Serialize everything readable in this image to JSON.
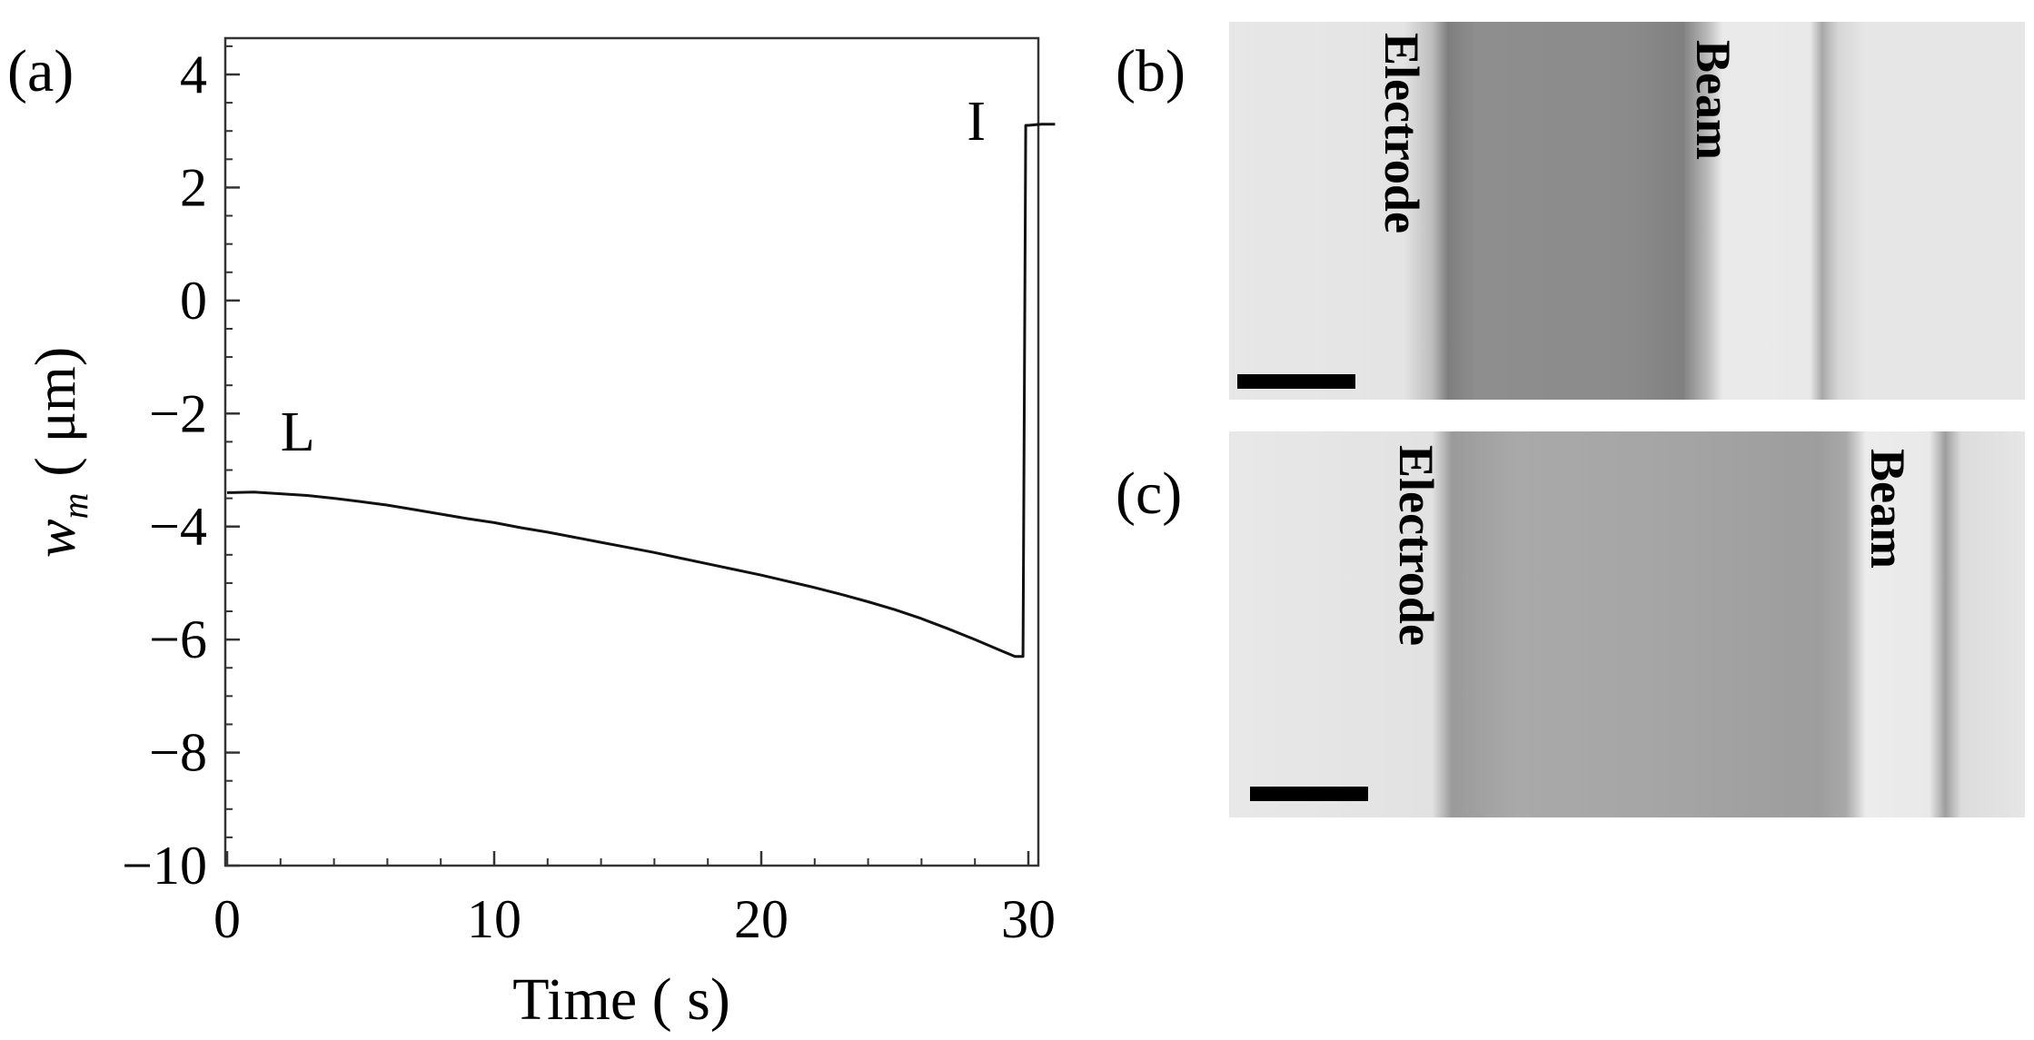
{
  "panels": {
    "a": {
      "label": "(a)",
      "chart_data": {
        "type": "line",
        "title": "",
        "xlabel": "Time ( s)",
        "ylabel_symbol": "w",
        "ylabel_subscript": "m",
        "ylabel_unit": "( μm)",
        "xlim": [
          0,
          31.2
        ],
        "ylim": [
          -10,
          4.5
        ],
        "x_ticks": [
          0,
          10,
          20,
          30
        ],
        "x_tick_labels": [
          "0",
          "10",
          "20",
          "30"
        ],
        "y_ticks": [
          4,
          2,
          0,
          -2,
          -4,
          -6,
          -8,
          -10
        ],
        "y_tick_labels": [
          "4",
          "2",
          "0",
          "−2",
          "−4",
          "−6",
          "−8",
          "−10"
        ],
        "grid": false,
        "annotations": [
          {
            "text": "L",
            "x": 2,
            "y": -2.3
          },
          {
            "text": "I",
            "x": 27.7,
            "y": 3.2
          }
        ],
        "series": [
          {
            "x": [
              0,
              1,
              2,
              3,
              4,
              5,
              6,
              7,
              8,
              9,
              10,
              11,
              12,
              13,
              14,
              15,
              16,
              17,
              18,
              19,
              20,
              21,
              22,
              23,
              24,
              25,
              26,
              27,
              28,
              29,
              29.5,
              29.8,
              29.9,
              30.0,
              30.5,
              31.0
            ],
            "y": [
              -3.4,
              -3.39,
              -3.42,
              -3.45,
              -3.5,
              -3.56,
              -3.62,
              -3.7,
              -3.78,
              -3.86,
              -3.93,
              -4.02,
              -4.1,
              -4.19,
              -4.28,
              -4.37,
              -4.46,
              -4.56,
              -4.66,
              -4.76,
              -4.86,
              -4.97,
              -5.08,
              -5.2,
              -5.33,
              -5.47,
              -5.63,
              -5.81,
              -6.0,
              -6.2,
              -6.3,
              -6.3,
              3.1,
              3.1,
              3.12,
              3.12
            ]
          }
        ]
      }
    },
    "b": {
      "label": "(b)",
      "electrode_label": "Electrode",
      "beam_label": "Beam"
    },
    "c": {
      "label": "(c)",
      "electrode_label": "Electrode",
      "beam_label": "Beam"
    }
  }
}
